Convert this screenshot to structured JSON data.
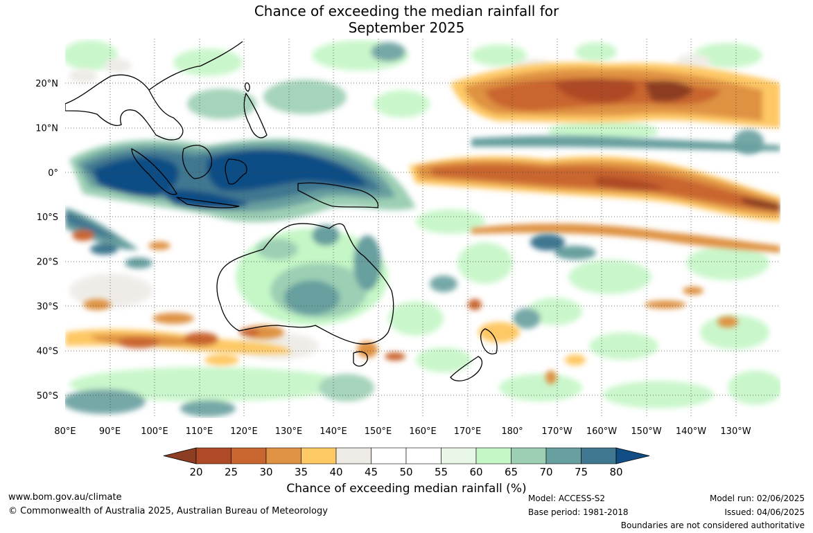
{
  "title": {
    "line1": "Chance of exceeding the median rainfall for",
    "line2": "September 2025"
  },
  "map": {
    "lon_labels": [
      "80°E",
      "90°E",
      "100°E",
      "110°E",
      "120°E",
      "130°E",
      "140°E",
      "150°E",
      "160°E",
      "170°E",
      "180°",
      "170°W",
      "160°W",
      "150°W",
      "140°W",
      "130°W"
    ],
    "lat_labels": [
      "20°N",
      "10°N",
      "0°",
      "10°S",
      "20°S",
      "30°S",
      "40°S",
      "50°S"
    ],
    "extent": {
      "lon": [
        80,
        240
      ],
      "lat": [
        -55,
        30
      ]
    }
  },
  "colorbar": {
    "title": "Chance of exceeding median rainfall (%)",
    "ticks": [
      "20",
      "25",
      "30",
      "35",
      "40",
      "45",
      "50",
      "55",
      "60",
      "65",
      "70",
      "75",
      "80"
    ],
    "colors": [
      "#8c3d22",
      "#ae4a26",
      "#c9652f",
      "#df9243",
      "#fec865",
      "#eeebe6",
      "#ffffff",
      "#ffffff",
      "#e9f8e6",
      "#c4f6c6",
      "#9ccfb4",
      "#689f9f",
      "#3f7790",
      "#104e85"
    ]
  },
  "footer": {
    "url": "www.bom.gov.au/climate",
    "copyright": "© Commonwealth of Australia 2025, Australian Bureau of Meteorology",
    "model": "Model: ACCESS-S2",
    "base_period": "Base period: 1981-2018",
    "model_run": "Model run: 02/06/2025",
    "issued": "Issued: 04/06/2025",
    "boundaries": "Boundaries are not considered authoritative"
  }
}
